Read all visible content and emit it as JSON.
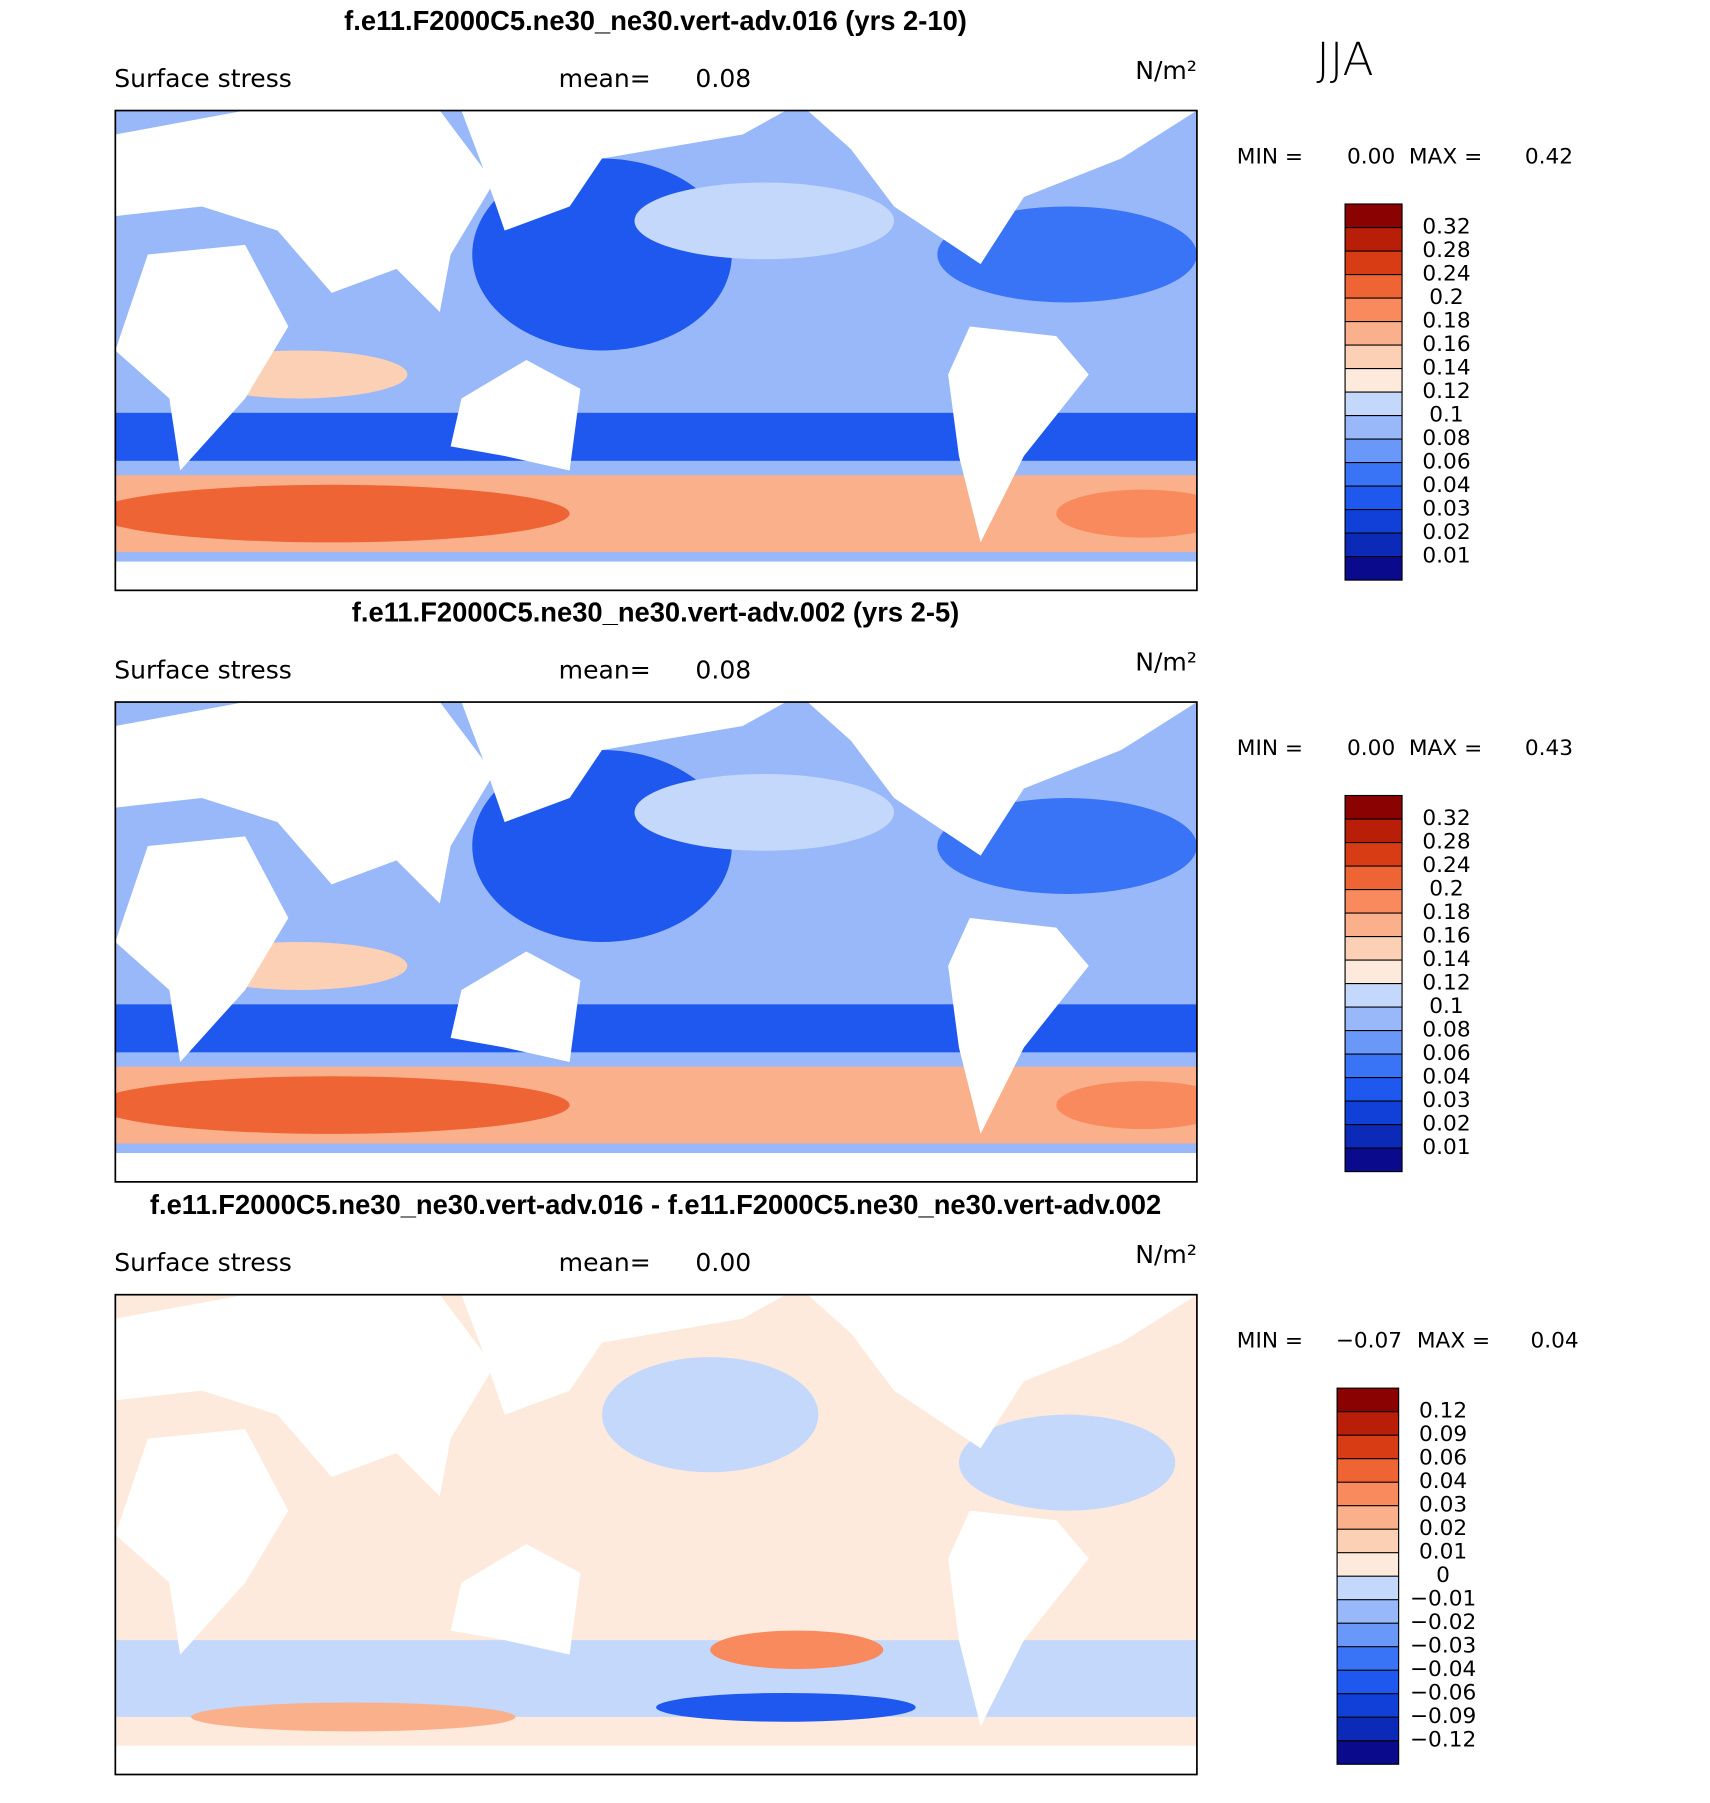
{
  "season": "JJA",
  "panels": [
    {
      "title": "f.e11.F2000C5.ne30_ne30.vert-adv.016 (yrs 2-10)",
      "variable": "Surface stress",
      "mean_label": "mean=",
      "mean": 0.08,
      "units": "N/m²",
      "min_label": "MIN =",
      "min": {
        "value": 0,
        "label": "0.00"
      },
      "max_label": "MAX =",
      "max": 0.42,
      "levels": [
        0.01,
        0.02,
        0.03,
        0.04,
        0.06,
        0.08,
        0.1,
        0.12,
        0.14,
        0.16,
        0.18,
        0.2,
        0.24,
        0.28,
        0.32
      ],
      "colors": [
        "#0a0a8c",
        "#0b2ab8",
        "#1040d8",
        "#1e58ee",
        "#3a74f6",
        "#6a98f8",
        "#98b8fa",
        "#c4d8fc",
        "#fdeadc",
        "#fcd0b4",
        "#fbb08c",
        "#f88a5e",
        "#ef6434",
        "#d83c14",
        "#b81e08",
        "#8a0202"
      ]
    },
    {
      "title": "f.e11.F2000C5.ne30_ne30.vert-adv.002 (yrs 2-5)",
      "variable": "Surface stress",
      "mean_label": "mean=",
      "mean": 0.08,
      "units": "N/m²",
      "min_label": "MIN =",
      "min": {
        "value": 0,
        "label": "0.00"
      },
      "max_label": "MAX =",
      "max": 0.43,
      "levels": [
        0.01,
        0.02,
        0.03,
        0.04,
        0.06,
        0.08,
        0.1,
        0.12,
        0.14,
        0.16,
        0.18,
        0.2,
        0.24,
        0.28,
        0.32
      ],
      "colors": [
        "#0a0a8c",
        "#0b2ab8",
        "#1040d8",
        "#1e58ee",
        "#3a74f6",
        "#6a98f8",
        "#98b8fa",
        "#c4d8fc",
        "#fdeadc",
        "#fcd0b4",
        "#fbb08c",
        "#f88a5e",
        "#ef6434",
        "#d83c14",
        "#b81e08",
        "#8a0202"
      ]
    },
    {
      "title": "f.e11.F2000C5.ne30_ne30.vert-adv.016 - f.e11.F2000C5.ne30_ne30.vert-adv.002",
      "variable": "Surface stress",
      "mean_label": "mean=",
      "mean": {
        "value": 0,
        "label": "0.00"
      },
      "units": "N/m²",
      "min_label": "MIN =",
      "min": {
        "value": -0.07,
        "label": "−0.07"
      },
      "max_label": "MAX =",
      "max": 0.04,
      "levels": [
        {
          "value": -0.12,
          "label": "−0.12"
        },
        {
          "value": -0.09,
          "label": "−0.09"
        },
        {
          "value": -0.06,
          "label": "−0.06"
        },
        {
          "value": -0.04,
          "label": "−0.04"
        },
        {
          "value": -0.03,
          "label": "−0.03"
        },
        {
          "value": -0.02,
          "label": "−0.02"
        },
        {
          "value": -0.01,
          "label": "−0.01"
        },
        0,
        0.01,
        0.02,
        0.03,
        0.04,
        0.06,
        0.09,
        0.12
      ],
      "colors": [
        "#0a0a8c",
        "#0b2ab8",
        "#1040d8",
        "#1e58ee",
        "#3a74f6",
        "#6a98f8",
        "#98b8fa",
        "#c4d8fc",
        "#fdeadc",
        "#fcd0b4",
        "#fbb08c",
        "#f88a5e",
        "#ef6434",
        "#d83c14",
        "#b81e08",
        "#8a0202"
      ]
    }
  ]
}
